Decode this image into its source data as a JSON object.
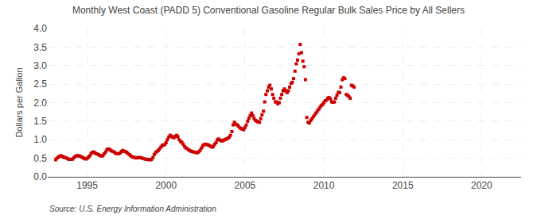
{
  "chart_data": {
    "type": "scatter",
    "title": "Monthly West Coast (PADD 5) Conventional Gasoline Regular Bulk Sales Price by All Sellers",
    "ylabel": "Dollars per Gallon",
    "annotations": [
      "Source: U.S. Energy Information Administration"
    ],
    "color": "#CC0000",
    "marker": "square",
    "grid": true,
    "xlim": [
      1992.5,
      2022.5
    ],
    "ylim": [
      0.0,
      4.0
    ],
    "xticks": [
      1995,
      2000,
      2005,
      2010,
      2015,
      2020
    ],
    "yticks": [
      {
        "value": 0.0,
        "label": "0.0"
      },
      0.5,
      {
        "value": 1.0,
        "label": "1.0"
      },
      1.5,
      {
        "value": 2.0,
        "label": "2.0"
      },
      2.5,
      {
        "value": 3.0,
        "label": "3.0"
      },
      3.5,
      {
        "value": 4.0,
        "label": "4.0"
      }
    ],
    "x": [
      1993.0,
      1993.08,
      1993.17,
      1993.25,
      1993.33,
      1993.42,
      1993.5,
      1993.58,
      1993.67,
      1993.75,
      1993.83,
      1993.92,
      1994.0,
      1994.08,
      1994.17,
      1994.25,
      1994.33,
      1994.42,
      1994.5,
      1994.58,
      1994.67,
      1994.75,
      1994.83,
      1994.92,
      1995.0,
      1995.08,
      1995.17,
      1995.25,
      1995.33,
      1995.42,
      1995.5,
      1995.58,
      1995.67,
      1995.75,
      1995.83,
      1995.92,
      1996.0,
      1996.08,
      1996.17,
      1996.25,
      1996.33,
      1996.42,
      1996.5,
      1996.58,
      1996.67,
      1996.75,
      1996.83,
      1996.92,
      1997.0,
      1997.08,
      1997.17,
      1997.25,
      1997.33,
      1997.42,
      1997.5,
      1997.58,
      1997.67,
      1997.75,
      1997.83,
      1997.92,
      1998.0,
      1998.08,
      1998.17,
      1998.25,
      1998.33,
      1998.42,
      1998.5,
      1998.58,
      1998.67,
      1998.75,
      1998.83,
      1998.92,
      1999.0,
      1999.08,
      1999.17,
      1999.25,
      1999.33,
      1999.42,
      1999.5,
      1999.58,
      1999.67,
      1999.75,
      1999.83,
      1999.92,
      2000.0,
      2000.08,
      2000.17,
      2000.25,
      2000.33,
      2000.42,
      2000.5,
      2000.58,
      2000.67,
      2000.75,
      2000.83,
      2000.92,
      2001.0,
      2001.08,
      2001.17,
      2001.25,
      2001.33,
      2001.42,
      2001.5,
      2001.58,
      2001.67,
      2001.75,
      2001.83,
      2001.92,
      2002.0,
      2002.08,
      2002.17,
      2002.25,
      2002.33,
      2002.42,
      2002.5,
      2002.58,
      2002.67,
      2002.75,
      2002.83,
      2002.92,
      2003.0,
      2003.08,
      2003.17,
      2003.25,
      2003.33,
      2003.42,
      2003.5,
      2003.58,
      2003.67,
      2003.75,
      2003.83,
      2003.92,
      2004.0,
      2004.08,
      2004.17,
      2004.25,
      2004.33,
      2004.42,
      2004.5,
      2004.58,
      2004.67,
      2004.75,
      2004.83,
      2004.92,
      2005.0,
      2005.08,
      2005.17,
      2005.25,
      2005.33,
      2005.42,
      2005.5,
      2005.58,
      2005.67,
      2005.75,
      2005.83,
      2005.92,
      2006.0,
      2006.08,
      2006.17,
      2006.25,
      2006.33,
      2006.42,
      2006.5,
      2006.58,
      2006.67,
      2006.75,
      2006.83,
      2006.92,
      2007.0,
      2007.08,
      2007.17,
      2007.25,
      2007.33,
      2007.42,
      2007.5,
      2007.58,
      2007.67,
      2007.75,
      2007.83,
      2007.92,
      2008.0,
      2008.08,
      2008.17,
      2008.25,
      2008.33,
      2008.42,
      2008.5,
      2008.58,
      2008.67,
      2008.75,
      2008.83,
      2008.92,
      2009.0,
      2009.08,
      2009.17,
      2009.25,
      2009.33,
      2009.42,
      2009.5,
      2009.58,
      2009.67,
      2009.75,
      2009.83,
      2009.92,
      2010.0,
      2010.08,
      2010.17,
      2010.25,
      2010.33,
      2010.42,
      2010.5,
      2010.58,
      2010.67,
      2010.75,
      2010.83,
      2010.92,
      2011.0,
      2011.08,
      2011.17,
      2011.25,
      2011.33,
      2011.42,
      2011.5,
      2011.58,
      2011.67,
      2011.75,
      2011.83,
      2011.92
    ],
    "values": [
      0.46,
      0.5,
      0.53,
      0.55,
      0.57,
      0.55,
      0.53,
      0.52,
      0.51,
      0.49,
      0.47,
      0.47,
      0.47,
      0.48,
      0.52,
      0.55,
      0.57,
      0.57,
      0.56,
      0.55,
      0.53,
      0.51,
      0.49,
      0.48,
      0.5,
      0.53,
      0.57,
      0.63,
      0.66,
      0.67,
      0.64,
      0.62,
      0.61,
      0.59,
      0.57,
      0.56,
      0.57,
      0.62,
      0.67,
      0.73,
      0.75,
      0.74,
      0.71,
      0.69,
      0.68,
      0.65,
      0.63,
      0.62,
      0.62,
      0.64,
      0.68,
      0.71,
      0.69,
      0.68,
      0.66,
      0.63,
      0.6,
      0.57,
      0.54,
      0.53,
      0.52,
      0.51,
      0.51,
      0.52,
      0.52,
      0.51,
      0.5,
      0.49,
      0.48,
      0.47,
      0.47,
      0.46,
      0.46,
      0.47,
      0.52,
      0.6,
      0.65,
      0.68,
      0.71,
      0.75,
      0.8,
      0.84,
      0.86,
      0.87,
      0.92,
      1.0,
      1.07,
      1.12,
      1.1,
      1.07,
      1.05,
      1.09,
      1.12,
      1.08,
      1.0,
      0.95,
      0.93,
      0.88,
      0.82,
      0.78,
      0.76,
      0.73,
      0.71,
      0.69,
      0.68,
      0.67,
      0.66,
      0.65,
      0.65,
      0.68,
      0.72,
      0.78,
      0.84,
      0.87,
      0.88,
      0.87,
      0.86,
      0.84,
      0.82,
      0.8,
      0.82,
      0.88,
      0.92,
      1.0,
      1.02,
      0.99,
      0.97,
      0.97,
      0.99,
      1.01,
      1.02,
      1.04,
      1.07,
      1.12,
      1.22,
      1.4,
      1.47,
      1.42,
      1.4,
      1.37,
      1.32,
      1.3,
      1.29,
      1.27,
      1.33,
      1.4,
      1.5,
      1.58,
      1.65,
      1.72,
      1.65,
      1.57,
      1.52,
      1.5,
      1.48,
      1.47,
      1.57,
      1.67,
      1.77,
      2.02,
      2.22,
      2.32,
      2.42,
      2.47,
      2.37,
      2.22,
      2.12,
      2.02,
      2.02,
      1.97,
      2.0,
      2.12,
      2.22,
      2.32,
      2.37,
      2.32,
      2.27,
      2.32,
      2.42,
      2.52,
      2.55,
      2.65,
      2.85,
      3.05,
      3.15,
      3.32,
      3.57,
      3.35,
      3.12,
      2.97,
      2.62,
      1.6,
      1.47,
      1.45,
      1.52,
      1.57,
      1.62,
      1.67,
      1.72,
      1.77,
      1.82,
      1.87,
      1.92,
      1.95,
      2.0,
      2.05,
      2.07,
      2.12,
      2.14,
      2.1,
      2.02,
      2.01,
      2.02,
      2.12,
      2.2,
      2.28,
      2.27,
      2.42,
      2.62,
      2.67,
      2.65,
      2.22,
      2.2,
      2.17,
      2.12,
      2.47,
      2.45,
      2.42
    ]
  }
}
